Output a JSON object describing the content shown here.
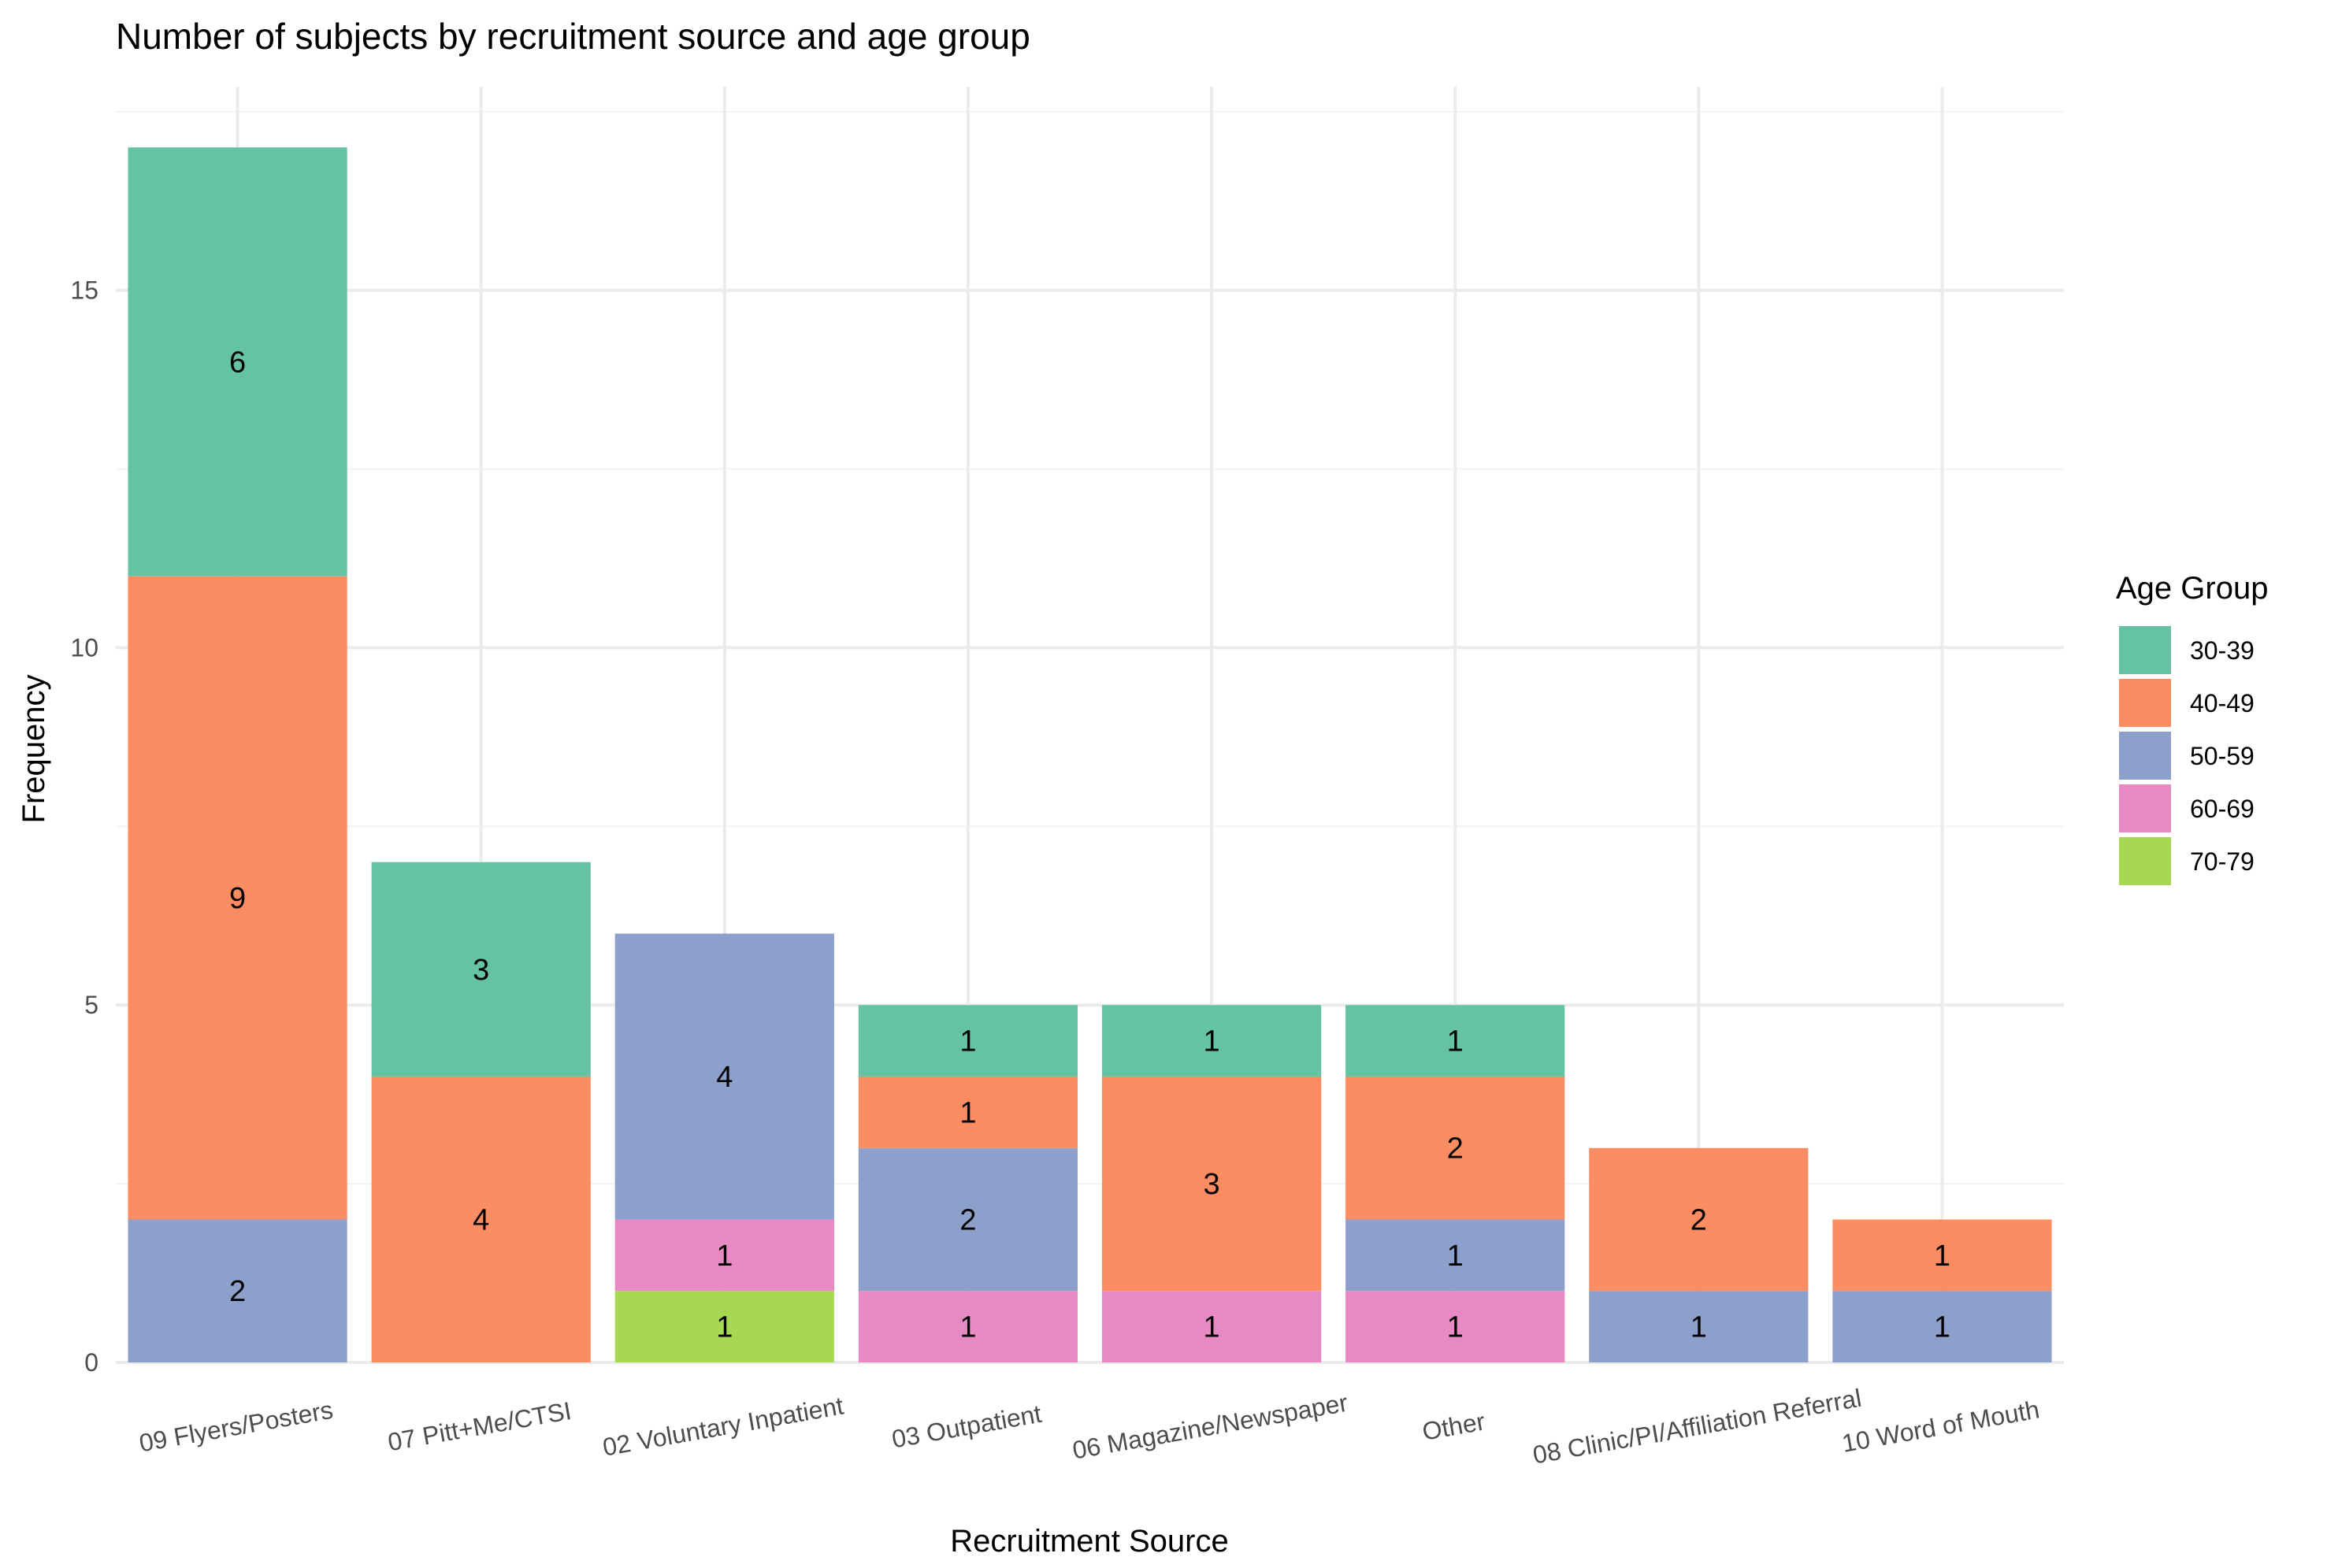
{
  "chart_data": {
    "type": "bar",
    "stacked": true,
    "title": "Number of subjects by recruitment source and age group",
    "xlabel": "Recruitment Source",
    "ylabel": "Frequency",
    "ylim": [
      0,
      17.85
    ],
    "yticks": [
      0,
      5,
      10,
      15
    ],
    "grid": true,
    "legend": {
      "title": "Age Group",
      "placement": "right"
    },
    "categories": [
      "09 Flyers/Posters",
      "07 Pitt+Me/CTSI",
      "02 Voluntary Inpatient",
      "03 Outpatient",
      "06 Magazine/Newspaper",
      "Other",
      "08 Clinic/PI/Affiliation Referral",
      "10 Word of Mouth"
    ],
    "series": [
      {
        "name": "70-79",
        "color": "#a6d854",
        "values": [
          0,
          0,
          1,
          0,
          0,
          0,
          0,
          0
        ]
      },
      {
        "name": "60-69",
        "color": "#e78ac3",
        "values": [
          0,
          0,
          1,
          1,
          1,
          1,
          0,
          0
        ]
      },
      {
        "name": "50-59",
        "color": "#8da0cb",
        "values": [
          2,
          0,
          4,
          2,
          0,
          1,
          1,
          1
        ]
      },
      {
        "name": "40-49",
        "color": "#fc8d62",
        "values": [
          9,
          4,
          0,
          1,
          3,
          2,
          2,
          1
        ]
      },
      {
        "name": "30-39",
        "color": "#66c2a5",
        "values": [
          6,
          3,
          0,
          1,
          1,
          1,
          0,
          0
        ]
      }
    ],
    "legend_order": [
      "30-39",
      "40-49",
      "50-59",
      "60-69",
      "70-79"
    ]
  }
}
